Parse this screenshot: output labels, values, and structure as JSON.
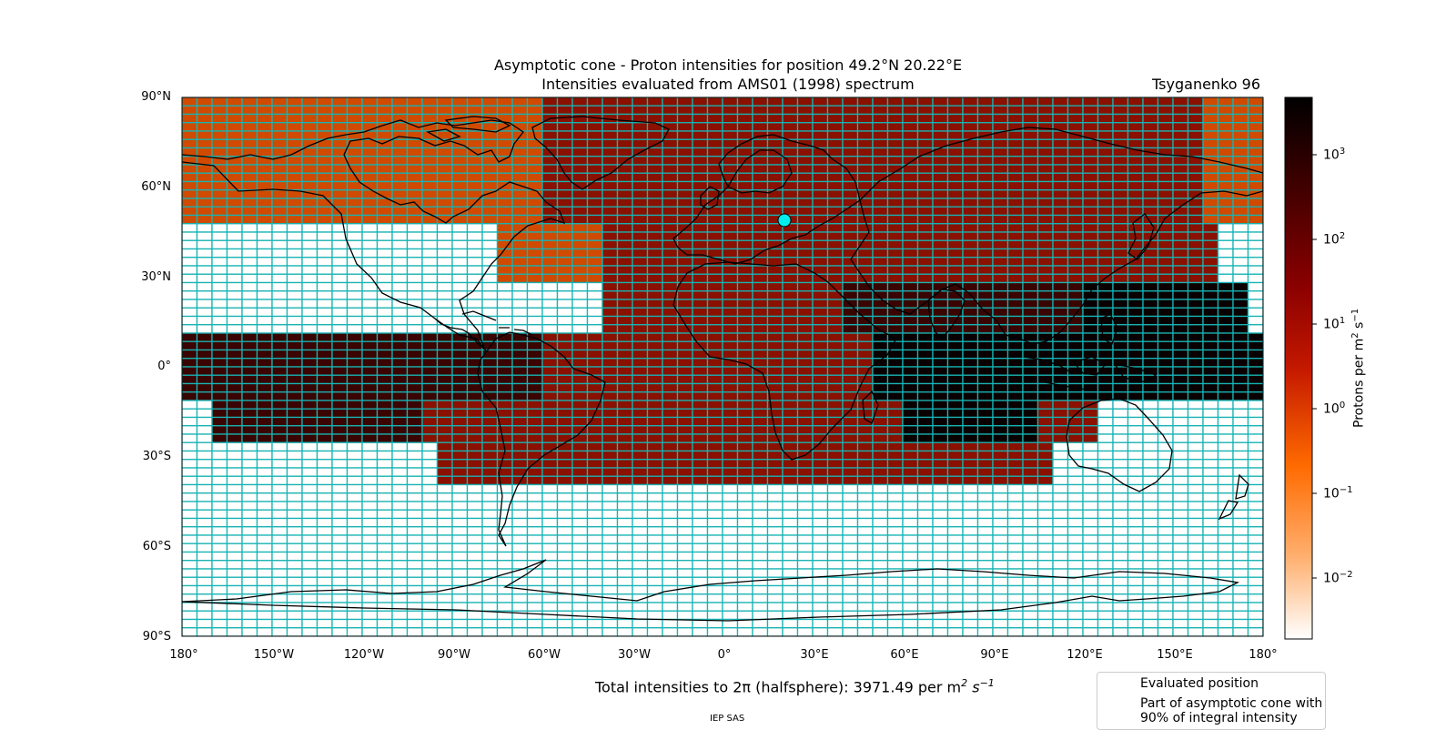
{
  "title": {
    "line1": "Asymptotic cone - Proton intensities for position 49.2°N 20.22°E",
    "line2": "Intensities evaluated from AMS01 (1998) spectrum",
    "model": "Tsyganenko 96"
  },
  "evaluated_position": {
    "lat": 49.2,
    "lon": 20.22
  },
  "axes": {
    "lat_ticks": [
      "90°N",
      "60°N",
      "30°N",
      "0°",
      "30°S",
      "60°S",
      "90°S"
    ],
    "lon_ticks": [
      "180°",
      "150°W",
      "120°W",
      "90°W",
      "60°W",
      "30°W",
      "0°",
      "30°E",
      "60°E",
      "90°E",
      "120°E",
      "150°E",
      "180°"
    ]
  },
  "total": {
    "prefix": "Total intensities to 2π (halfsphere): 3971.49 per m",
    "exp": "2",
    "unit_s": "s",
    "unit_exp": "−1"
  },
  "colorbar": {
    "label_main": "Protons per m",
    "label_exp1": "2",
    "label_s": " s",
    "label_exp2": "−1",
    "ticks": [
      {
        "base": "10",
        "exp": "3"
      },
      {
        "base": "10",
        "exp": "2"
      },
      {
        "base": "10",
        "exp": "1"
      },
      {
        "base": "10",
        "exp": "0"
      },
      {
        "base": "10",
        "exp": "−1"
      },
      {
        "base": "10",
        "exp": "−2"
      }
    ],
    "colors": [
      "#000000",
      "#3a0000",
      "#8b0000",
      "#c41800",
      "#ff6a00",
      "#ffb070",
      "#ffffff"
    ]
  },
  "legend": {
    "evaluated": "Evaluated position",
    "cone_line1": "Part of asymptotic cone with",
    "cone_line2": "90% of integral intensity"
  },
  "credit": "IEP SAS",
  "style": {
    "grid_color": "#17b3b3",
    "marker_color": "#00eeee",
    "cone_outline_color": "#00ff00"
  }
}
